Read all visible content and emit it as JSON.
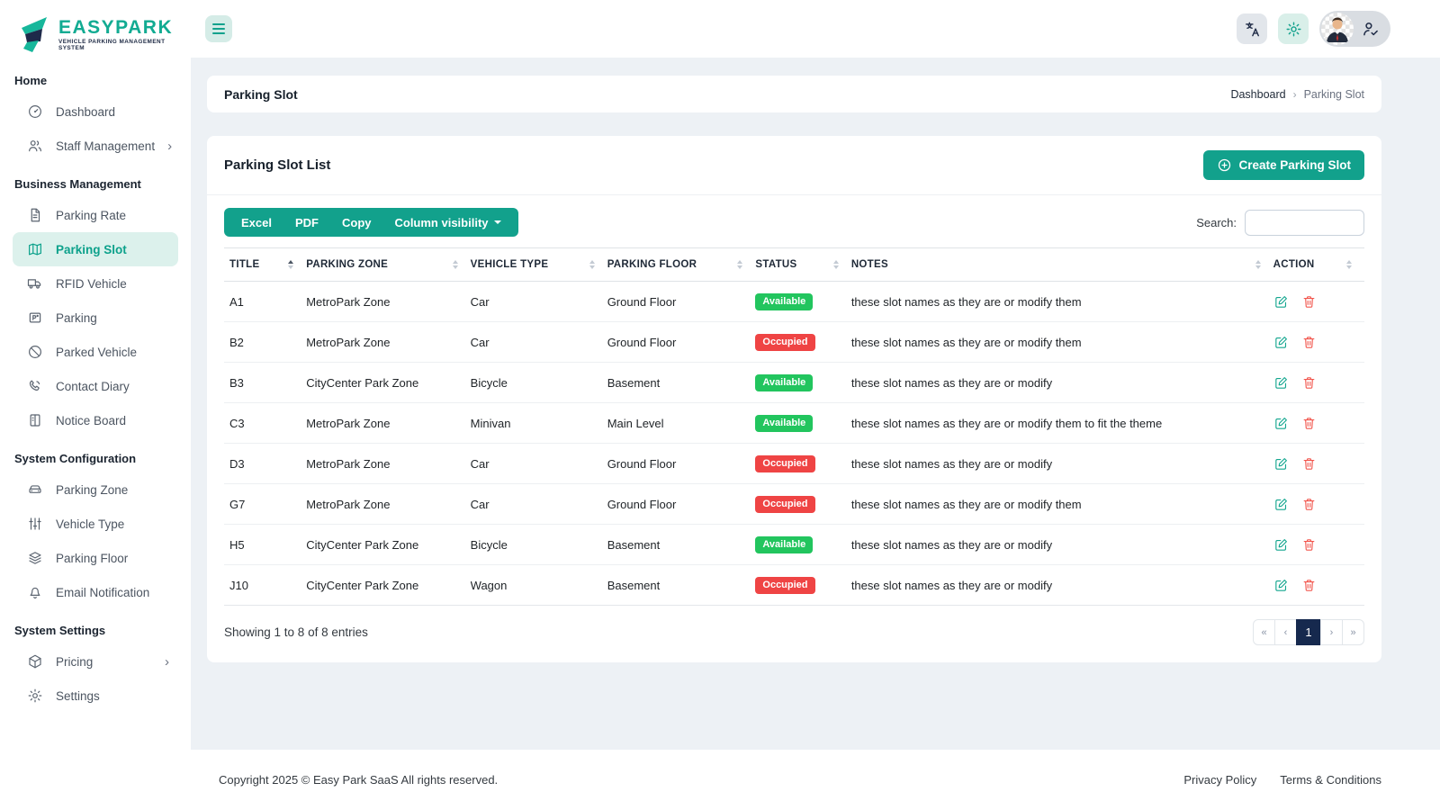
{
  "brand": {
    "name": "EASYPARK",
    "tagline": "VEHICLE PARKING MANAGEMENT SYSTEM"
  },
  "topbar": {
    "buttons": [
      {
        "icon": "translate-icon"
      },
      {
        "icon": "gear-icon"
      },
      {
        "icon": "user-check-icon",
        "avatar": "avatar"
      }
    ]
  },
  "sidebar": {
    "sections": [
      {
        "heading": "Home",
        "items": [
          {
            "label": "Dashboard",
            "icon": "dashboard-icon",
            "active": false,
            "chevron": false
          },
          {
            "label": "Staff Management",
            "icon": "users-icon",
            "active": false,
            "chevron": true
          }
        ]
      },
      {
        "heading": "Business Management",
        "items": [
          {
            "label": "Parking Rate",
            "icon": "file-lines-icon",
            "active": false,
            "chevron": false
          },
          {
            "label": "Parking Slot",
            "icon": "map-icon",
            "active": true,
            "chevron": false
          },
          {
            "label": "RFID Vehicle",
            "icon": "truck-icon",
            "active": false,
            "chevron": false
          },
          {
            "label": "Parking",
            "icon": "parking-ticket-icon",
            "active": false,
            "chevron": false
          },
          {
            "label": "Parked Vehicle",
            "icon": "ban-icon",
            "active": false,
            "chevron": false
          },
          {
            "label": "Contact Diary",
            "icon": "phone-icon",
            "active": false,
            "chevron": false
          },
          {
            "label": "Notice Board",
            "icon": "notice-board-icon",
            "active": false,
            "chevron": false
          }
        ]
      },
      {
        "heading": "System Configuration",
        "items": [
          {
            "label": "Parking Zone",
            "icon": "car-icon",
            "active": false,
            "chevron": false
          },
          {
            "label": "Vehicle Type",
            "icon": "sliders-icon",
            "active": false,
            "chevron": false
          },
          {
            "label": "Parking Floor",
            "icon": "layers-icon",
            "active": false,
            "chevron": false
          },
          {
            "label": "Email Notification",
            "icon": "bell-icon",
            "active": false,
            "chevron": false
          }
        ]
      },
      {
        "heading": "System Settings",
        "items": [
          {
            "label": "Pricing",
            "icon": "package-icon",
            "active": false,
            "chevron": true
          },
          {
            "label": "Settings",
            "icon": "gear-icon",
            "active": false,
            "chevron": false
          }
        ]
      }
    ]
  },
  "page": {
    "title": "Parking Slot",
    "breadcrumb": {
      "home": "Dashboard",
      "separator": "›",
      "current": "Parking Slot"
    }
  },
  "card": {
    "title": "Parking Slot List",
    "create_button": "Create Parking Slot",
    "export_buttons": [
      "Excel",
      "PDF",
      "Copy"
    ],
    "column_visibility": "Column visibility",
    "search_label": "Search:",
    "search_value": ""
  },
  "table": {
    "columns": [
      "Title",
      "Parking Zone",
      "Vehicle Type",
      "Parking Floor",
      "Status",
      "Notes",
      "Action"
    ],
    "sorted_column": "Title",
    "sort_direction": "asc",
    "actions": [
      "edit-icon",
      "trash-icon"
    ],
    "rows": [
      {
        "title": "A1",
        "zone": "MetroPark Zone",
        "vehicle_type": "Car",
        "floor": "Ground Floor",
        "status": "Available",
        "notes": "these slot names as they are or modify them"
      },
      {
        "title": "B2",
        "zone": "MetroPark Zone",
        "vehicle_type": "Car",
        "floor": "Ground Floor",
        "status": "Occupied",
        "notes": "these slot names as they are or modify them"
      },
      {
        "title": "B3",
        "zone": "CityCenter Park Zone",
        "vehicle_type": "Bicycle",
        "floor": "Basement",
        "status": "Available",
        "notes": "these slot names as they are or modify"
      },
      {
        "title": "C3",
        "zone": "MetroPark Zone",
        "vehicle_type": "Minivan",
        "floor": "Main Level",
        "status": "Available",
        "notes": "these slot names as they are or modify them to fit the theme"
      },
      {
        "title": "D3",
        "zone": "MetroPark Zone",
        "vehicle_type": "Car",
        "floor": "Ground Floor",
        "status": "Occupied",
        "notes": "these slot names as they are or modify"
      },
      {
        "title": "G7",
        "zone": "MetroPark Zone",
        "vehicle_type": "Car",
        "floor": "Ground Floor",
        "status": "Occupied",
        "notes": "these slot names as they are or modify them"
      },
      {
        "title": "H5",
        "zone": "CityCenter Park Zone",
        "vehicle_type": "Bicycle",
        "floor": "Basement",
        "status": "Available",
        "notes": "these slot names as they are or modify"
      },
      {
        "title": "J10",
        "zone": "CityCenter Park Zone",
        "vehicle_type": "Wagon",
        "floor": "Basement",
        "status": "Occupied",
        "notes": "these slot names as they are or modify"
      }
    ],
    "summary": "Showing 1 to 8 of 8 entries",
    "pagination": {
      "first": "«",
      "prev": "‹",
      "active_page": "1",
      "next": "›",
      "last": "»"
    }
  },
  "footer": {
    "copyright": "Copyright 2025 © Easy Park SaaS All rights reserved.",
    "links": [
      "Privacy Policy",
      "Terms & Conditions"
    ]
  },
  "colors": {
    "primary_teal": "#12a18c",
    "sidebar_active_bg": "#dcf1ec",
    "status_available": "#22c55e",
    "status_occupied": "#ef4444",
    "pagination_active": "#16294e",
    "content_background": "#edf1f5"
  }
}
